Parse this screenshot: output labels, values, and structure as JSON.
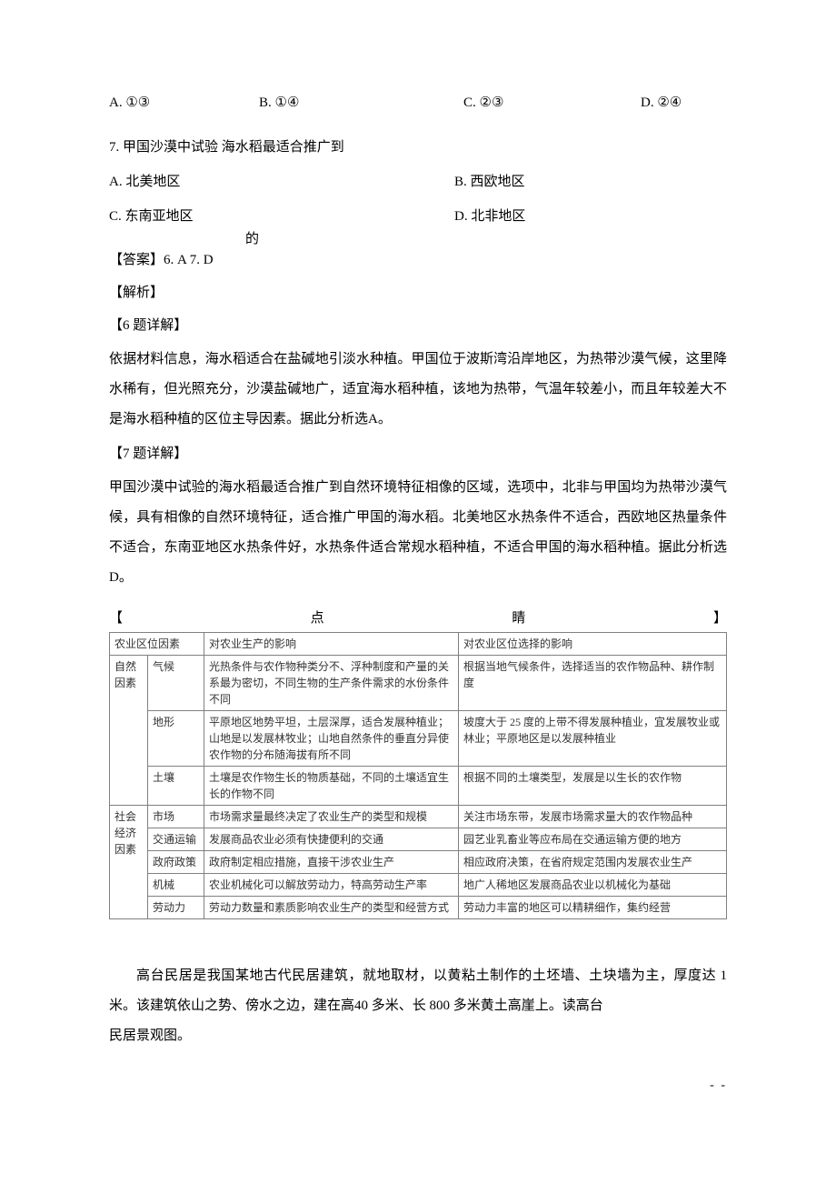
{
  "q6_options": {
    "a": "A. ①③",
    "b": "B. ①④",
    "c": "C. ②③",
    "d": "D. ②④"
  },
  "q7": {
    "stem": "7. 甲国沙漠中试验 海水稻最适合推广到",
    "interline": "的",
    "a": "A. 北美地区",
    "b": "B. 西欧地区",
    "c": "C. 东南亚地区",
    "d": "D. 北非地区"
  },
  "answers": "【答案】6. A    7. D",
  "analysis_h": "【解析】",
  "q6_detail_h": "【6 题详解】",
  "q6_detail_body": "依据材料信息，海水稻适合在盐碱地引淡水种植。甲国位于波斯湾沿岸地区，为热带沙漠气候，这里降水稀有，但光照充分，沙漠盐碱地广，适宜海水稻种植，该地为热带，气温年较差小，而且年较差大不是海水稻种植的区位主导因素。据此分析选A。",
  "q7_detail_h": "【7 题详解】",
  "q7_detail_body": "甲国沙漠中试验的海水稻最适合推广到自然环境特征相像的区域，选项中，北非与甲国均为热带沙漠气候，具有相像的自然环境特征，适合推广甲国的海水稻。北美地区水热条件不适合，西欧地区热量条件不适合，东南亚地区水热条件好，水热条件适合常规水稻种植，不适合甲国的海水稻种植。据此分析选D。",
  "spread": {
    "l": "【",
    "m": "点",
    "r1": "睛",
    "r2": "】"
  },
  "table": {
    "header": {
      "c1": "农业区位因素",
      "c2": "对农业生产的影响",
      "c3": "对农业区位选择的影响"
    },
    "rows": [
      {
        "cat": "自然\n因素",
        "catspan": 3,
        "f": "气候",
        "p": "光热条件与农作物种类分不、浮种制度和产量的关系最为密切，不同生物的生产条件需求的水份条件不同",
        "s": "根据当地气候条件，选择适当的农作物品种、耕作制度"
      },
      {
        "f": "地形",
        "p": "平原地区地势平坦，土层深厚，适合发展种植业；山地是以发展林牧业；山地自然条件的垂直分异使农作物的分布随海拔有所不同",
        "s": "坡度大于 25 度的上带不得发展种植业，宜发展牧业或林业；平原地区是以发展种植业"
      },
      {
        "f": "土壤",
        "p": "土壤是农作物生长的物质基础，不同的土壤适宜生长的作物不同",
        "s": "根据不同的土壤类型，发展是以生长的农作物"
      },
      {
        "cat": "社会\n经济\n因素",
        "catspan": 5,
        "f": "市场",
        "p": "市场需求量最终决定了农业生产的类型和规模",
        "s": "关注市场东带，发展市场需求量大的农作物品种"
      },
      {
        "f": "交通运输",
        "p": "发展商品农业必须有快捷便利的交通",
        "s": "园艺业乳畜业等应布局在交通运输方便的地方"
      },
      {
        "f": "政府政策",
        "p": "政府制定相应措施，直接干涉农业生产",
        "s": "相应政府决策，在省府规定范围内发展农业生产"
      },
      {
        "f": "机械",
        "p": "农业机械化可以解放劳动力，特高劳动生产率",
        "s": "地广人稀地区发展商品农业以机械化为基础"
      },
      {
        "f": "劳动力",
        "p": "劳动力数量和素质影响农业生产的类型和经营方式",
        "s": "劳动力丰富的地区可以精耕细作，集约经营"
      }
    ]
  },
  "passage": {
    "p1": "高台民居是我国某地古代民居建筑，就地取材，以黄粘土制作的土坯墙、土块墙为主，厚度达 1 米。该建筑依山之势、傍水之边，建在高40 多米、长 800 多米黄土高崖上。读高台",
    "p2": "民居景观图。"
  },
  "footer": "- -"
}
